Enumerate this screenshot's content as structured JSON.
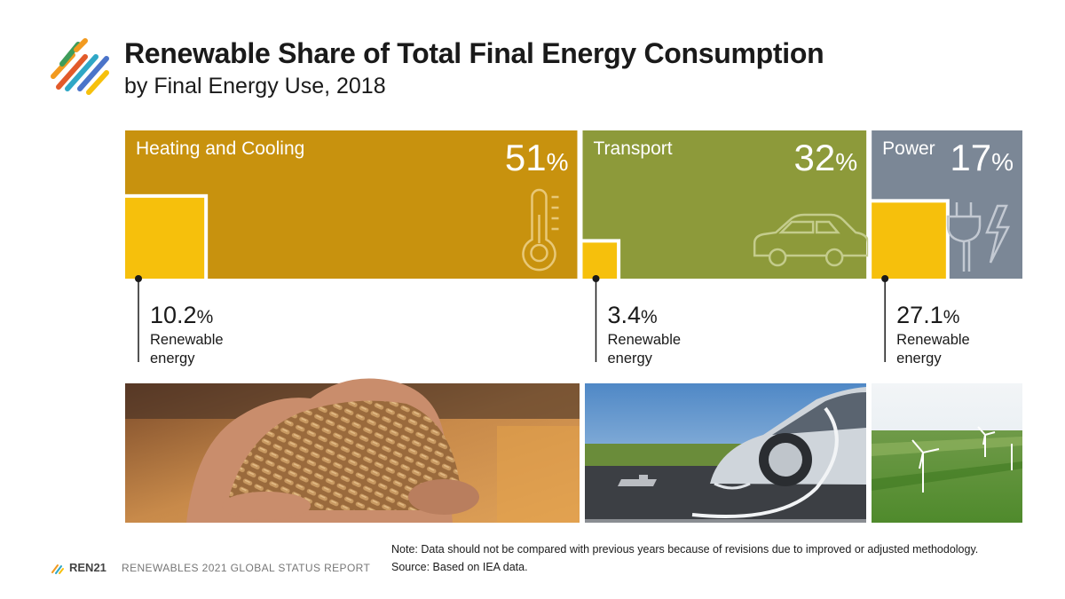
{
  "header": {
    "title": "Renewable Share of Total Final Energy Consumption",
    "subtitle": "by Final Energy Use, 2018"
  },
  "colors": {
    "heating": "#c8920e",
    "transport": "#8d9a3a",
    "power": "#7b8796",
    "renewable": "#f6c00c"
  },
  "chart_data": {
    "type": "bar",
    "title": "Renewable Share of Total Final Energy Consumption",
    "subtitle": "by Final Energy Use, 2018",
    "unit": "%",
    "categories": [
      "Heating and Cooling",
      "Transport",
      "Power"
    ],
    "series": [
      {
        "name": "",
        "values": [
          51,
          32,
          17
        ],
        "display": [
          "51",
          "32",
          "17"
        ]
      },
      {
        "name": "Renewable energy",
        "values": [
          10.2,
          3.4,
          27.1
        ],
        "display": [
          "10.2",
          "3.4",
          "27.1"
        ]
      }
    ],
    "icons": [
      "thermometer-icon",
      "car-icon",
      "plug-lightning-icon"
    ],
    "photos": [
      "wood-pellets-in-hands",
      "electric-car-charging",
      "wind-turbines-field"
    ],
    "renewable_label_line1": "Renewable",
    "renewable_label_line2": "energy",
    "percent_sign": "%"
  },
  "notes": {
    "note": "Note: Data should not be compared with previous years because of revisions due to improved or adjusted methodology.",
    "source": "Source: Based on IEA data."
  },
  "footer": {
    "brand": "REN21",
    "report": "RENEWABLES 2021 GLOBAL STATUS REPORT"
  }
}
